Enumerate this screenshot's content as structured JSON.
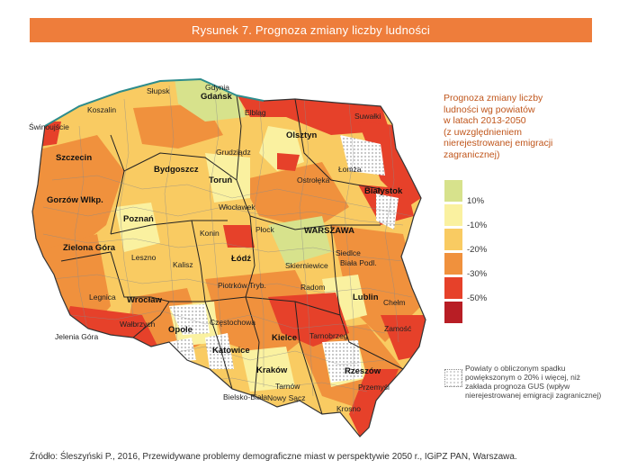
{
  "title": "Rysunek 7. Prognoza zmiany liczby ludności",
  "legend": {
    "title_lines": [
      "Prognoza zmiany liczby",
      "ludności wg powiatów",
      "w latach 2013-2050",
      "(z uwzględnieniem",
      "nierejestrowanej emigracji",
      "zagranicznej)"
    ],
    "items": [
      {
        "color": "#d7e28c",
        "label": "10%"
      },
      {
        "color": "#faf1a0",
        "label": "-10%"
      },
      {
        "color": "#f9cb62",
        "label": "-20%"
      },
      {
        "color": "#f0913d",
        "label": "-30%"
      },
      {
        "color": "#e6412a",
        "label": "-50%"
      },
      {
        "color": "#b81e25",
        "label": ""
      }
    ],
    "note": "Powiaty o obliczonym spadku powiększonym o 20% i więcej, niż zakłada prognoza GUS (wpływ nierejestrowanej emigracji zagranicznej)"
  },
  "cities": [
    {
      "name": "Gdynia",
      "big": false
    },
    {
      "name": "Gdańsk",
      "big": true
    },
    {
      "name": "Słupsk",
      "big": false
    },
    {
      "name": "Koszalin",
      "big": false
    },
    {
      "name": "Świnoujście",
      "big": false
    },
    {
      "name": "Elbląg",
      "big": false
    },
    {
      "name": "Suwałki",
      "big": false
    },
    {
      "name": "Olsztyn",
      "big": true
    },
    {
      "name": "Szczecin",
      "big": true
    },
    {
      "name": "Grudziądz",
      "big": false
    },
    {
      "name": "Bydgoszcz",
      "big": true
    },
    {
      "name": "Łomża",
      "big": false
    },
    {
      "name": "Ostrołęka",
      "big": false
    },
    {
      "name": "Białystok",
      "big": true
    },
    {
      "name": "Toruń",
      "big": true
    },
    {
      "name": "Gorzów Wlkp.",
      "big": true
    },
    {
      "name": "Włocławek",
      "big": false
    },
    {
      "name": "Poznań",
      "big": true
    },
    {
      "name": "WARSZAWA",
      "big": true
    },
    {
      "name": "Płock",
      "big": false
    },
    {
      "name": "Konin",
      "big": false
    },
    {
      "name": "Siedlce",
      "big": false
    },
    {
      "name": "Łódź",
      "big": true
    },
    {
      "name": "Zielona Góra",
      "big": true
    },
    {
      "name": "Leszno",
      "big": false
    },
    {
      "name": "Kalisz",
      "big": false
    },
    {
      "name": "Skierniewice",
      "big": false
    },
    {
      "name": "Biała Podl.",
      "big": false
    },
    {
      "name": "Piotrków Tryb.",
      "big": false
    },
    {
      "name": "Legnica",
      "big": false
    },
    {
      "name": "Radom",
      "big": false
    },
    {
      "name": "Wrocław",
      "big": true
    },
    {
      "name": "Lublin",
      "big": true
    },
    {
      "name": "Chełm",
      "big": false
    },
    {
      "name": "Wałbrzych",
      "big": false
    },
    {
      "name": "Opole",
      "big": true
    },
    {
      "name": "Częstochowa",
      "big": false
    },
    {
      "name": "Zamość",
      "big": false
    },
    {
      "name": "Jelenia Góra",
      "big": false
    },
    {
      "name": "Kielce",
      "big": true
    },
    {
      "name": "Tarnobrzeg",
      "big": false
    },
    {
      "name": "Katowice",
      "big": true
    },
    {
      "name": "Rzeszów",
      "big": true
    },
    {
      "name": "Kraków",
      "big": true
    },
    {
      "name": "Tarnów",
      "big": false
    },
    {
      "name": "Przemyśl",
      "big": false
    },
    {
      "name": "Bielsko-Biała",
      "big": false
    },
    {
      "name": "Nowy Sącz",
      "big": false
    },
    {
      "name": "Krosno",
      "big": false
    }
  ],
  "source": "Źródło: Śleszyński P., 2016, Przewidywane problemy demograficzne miast w perspektywie 2050 r., IGiPZ PAN, Warszawa."
}
